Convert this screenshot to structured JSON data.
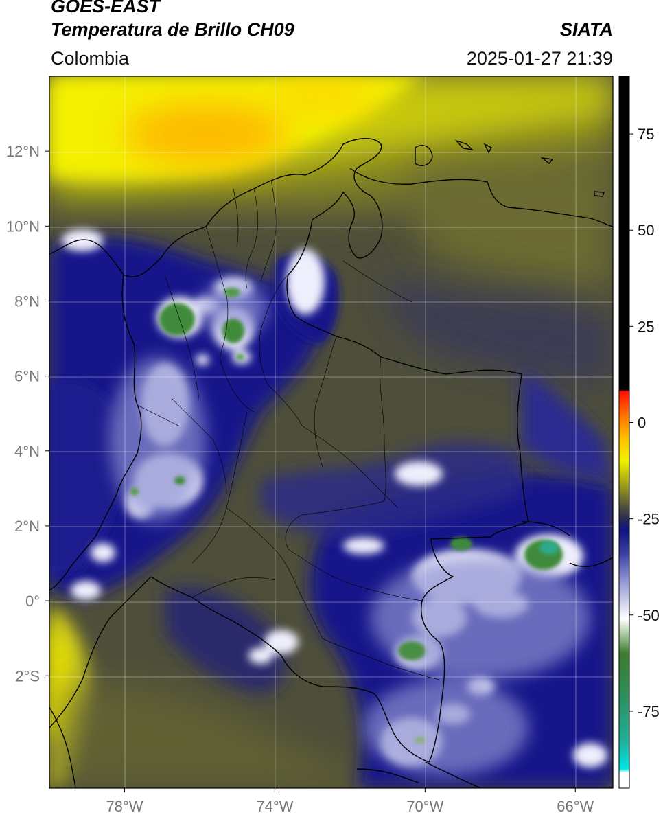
{
  "header": {
    "satellite": "GOES-EAST",
    "product": "Temperatura de Brillo CH09",
    "organization": "SIATA",
    "region": "Colombia",
    "timestamp": "2025-01-27 21:39"
  },
  "map": {
    "lon_range": [
      -80,
      -65
    ],
    "lat_range": [
      -5,
      14
    ],
    "lon_ticks": [
      {
        "value": -78,
        "label": "78°W"
      },
      {
        "value": -74,
        "label": "74°W"
      },
      {
        "value": -70,
        "label": "70°W"
      },
      {
        "value": -66,
        "label": "66°W"
      }
    ],
    "lat_ticks": [
      {
        "value": 12,
        "label": "12°N"
      },
      {
        "value": 10,
        "label": "10°N"
      },
      {
        "value": 8,
        "label": "8°N"
      },
      {
        "value": 6,
        "label": "6°N"
      },
      {
        "value": 4,
        "label": "4°N"
      },
      {
        "value": 2,
        "label": "2°N"
      },
      {
        "value": 0,
        "label": "0°"
      },
      {
        "value": -2,
        "label": "2°S"
      }
    ]
  },
  "colorbar": {
    "range": [
      -95,
      90
    ],
    "ticks": [
      {
        "value": 75,
        "label": "75"
      },
      {
        "value": 50,
        "label": "50"
      },
      {
        "value": 25,
        "label": "25"
      },
      {
        "value": 0,
        "label": "0"
      },
      {
        "value": -25,
        "label": "-25"
      },
      {
        "value": -50,
        "label": "-50"
      },
      {
        "value": -75,
        "label": "-75"
      }
    ],
    "stops": [
      {
        "value": -95,
        "color": "#ffffff"
      },
      {
        "value": -91,
        "color": "#ffffff"
      },
      {
        "value": -90,
        "color": "#00e5e5"
      },
      {
        "value": -83,
        "color": "#1fb09a"
      },
      {
        "value": -70,
        "color": "#2e8b57"
      },
      {
        "value": -60,
        "color": "#3c7a2e"
      },
      {
        "value": -55,
        "color": "#a8c8a0"
      },
      {
        "value": -51,
        "color": "#ffffff"
      },
      {
        "value": -42,
        "color": "#9aa0d8"
      },
      {
        "value": -34,
        "color": "#3a3fa0"
      },
      {
        "value": -28,
        "color": "#101480"
      },
      {
        "value": -25,
        "color": "#2a2a55"
      },
      {
        "value": -22,
        "color": "#4e4e3c"
      },
      {
        "value": -16,
        "color": "#a0a018"
      },
      {
        "value": -10,
        "color": "#f0f000"
      },
      {
        "value": -4,
        "color": "#ffc000"
      },
      {
        "value": 2,
        "color": "#ff7000"
      },
      {
        "value": 8,
        "color": "#ff1000"
      },
      {
        "value": 8.5,
        "color": "#000000"
      },
      {
        "value": 90,
        "color": "#000000"
      }
    ]
  },
  "colors": {
    "dark_olive": "#4b4b3a",
    "olive": "#7d7d2a",
    "yellow": "#f2f000",
    "orange": "#ffb800",
    "deep_blue": "#12147e",
    "cloud_white": "#f4f4ff",
    "cold_green": "#3f8a3a",
    "cold_teal": "#2eaa8a"
  }
}
